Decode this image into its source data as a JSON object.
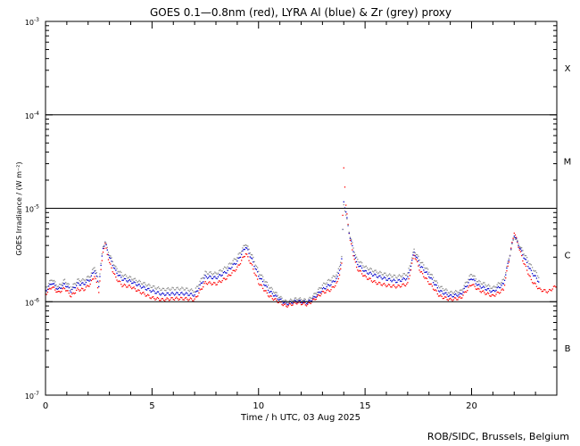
{
  "chart_data": {
    "type": "scatter",
    "title": "GOES 0.1—0.8nm (red), LYRA Al (blue) & Zr (grey) proxy",
    "xlabel": "Time / h UTC, 03 Aug 2025",
    "ylabel": "GOES Irradiance / (W m⁻²)",
    "xlim": [
      0,
      24
    ],
    "ylim": [
      1e-07,
      0.001
    ],
    "yscale": "log",
    "x_ticks": [
      "0",
      "5",
      "10",
      "15",
      "20"
    ],
    "x_tick_values": [
      0,
      5,
      10,
      15,
      20
    ],
    "y_ticks": [
      {
        "value": 0.001,
        "base": "10",
        "exp": "-3"
      },
      {
        "value": 0.0001,
        "base": "10",
        "exp": "-4"
      },
      {
        "value": 1e-05,
        "base": "10",
        "exp": "-5"
      },
      {
        "value": 1e-06,
        "base": "10",
        "exp": "-6"
      },
      {
        "value": 1e-07,
        "base": "10",
        "exp": "-7"
      }
    ],
    "flare_class_lines": [
      0.0001,
      1e-05,
      1e-06
    ],
    "class_labels": [
      {
        "label": "X",
        "value": 0.00032
      },
      {
        "label": "M",
        "value": 3.2e-05
      },
      {
        "label": "C",
        "value": 3.2e-06
      },
      {
        "label": "B",
        "value": 3.2e-07
      }
    ],
    "series": [
      {
        "name": "GOES 0.1—0.8nm",
        "color": "#ff0000",
        "points": [
          [
            0,
            1.2e-06
          ],
          [
            0.3,
            1.45e-06
          ],
          [
            0.6,
            1.25e-06
          ],
          [
            0.9,
            1.4e-06
          ],
          [
            1.2,
            1.15e-06
          ],
          [
            1.5,
            1.35e-06
          ],
          [
            1.8,
            1.35e-06
          ],
          [
            2.1,
            1.55e-06
          ],
          [
            2.3,
            1.9e-06
          ],
          [
            2.5,
            1.3e-06
          ],
          [
            2.7,
            3.5e-06
          ],
          [
            2.8,
            4.1e-06
          ],
          [
            3.0,
            2.6e-06
          ],
          [
            3.3,
            1.8e-06
          ],
          [
            3.6,
            1.5e-06
          ],
          [
            4.0,
            1.45e-06
          ],
          [
            4.5,
            1.25e-06
          ],
          [
            5.0,
            1.1e-06
          ],
          [
            5.5,
            1.05e-06
          ],
          [
            6.0,
            1.08e-06
          ],
          [
            6.5,
            1.08e-06
          ],
          [
            7.0,
            1.05e-06
          ],
          [
            7.5,
            1.6e-06
          ],
          [
            8.0,
            1.55e-06
          ],
          [
            8.5,
            1.8e-06
          ],
          [
            9.0,
            2.3e-06
          ],
          [
            9.4,
            3.3e-06
          ],
          [
            9.7,
            2.4e-06
          ],
          [
            10.0,
            1.6e-06
          ],
          [
            10.5,
            1.15e-06
          ],
          [
            11.0,
            9.8e-07
          ],
          [
            11.3,
            9e-07
          ],
          [
            11.8,
            9.8e-07
          ],
          [
            12.3,
            9.3e-07
          ],
          [
            12.6,
            1.05e-06
          ],
          [
            13.0,
            1.25e-06
          ],
          [
            13.4,
            1.35e-06
          ],
          [
            13.7,
            1.6e-06
          ],
          [
            13.9,
            2.5e-06
          ],
          [
            14.0,
            2.8e-05
          ],
          [
            14.1,
            1.05e-05
          ],
          [
            14.3,
            4.5e-06
          ],
          [
            14.6,
            2.3e-06
          ],
          [
            15.0,
            1.85e-06
          ],
          [
            15.5,
            1.6e-06
          ],
          [
            16.0,
            1.5e-06
          ],
          [
            16.5,
            1.45e-06
          ],
          [
            17.0,
            1.55e-06
          ],
          [
            17.3,
            3.2e-06
          ],
          [
            17.6,
            2.1e-06
          ],
          [
            18.0,
            1.6e-06
          ],
          [
            18.5,
            1.15e-06
          ],
          [
            19.0,
            1.05e-06
          ],
          [
            19.5,
            1.1e-06
          ],
          [
            20.0,
            1.55e-06
          ],
          [
            20.3,
            1.35e-06
          ],
          [
            20.6,
            1.25e-06
          ],
          [
            21.0,
            1.15e-06
          ],
          [
            21.5,
            1.35e-06
          ],
          [
            22.0,
            5.6e-06
          ],
          [
            22.4,
            2.8e-06
          ],
          [
            22.8,
            1.7e-06
          ],
          [
            23.2,
            1.35e-06
          ],
          [
            23.6,
            1.28e-06
          ],
          [
            24,
            1.5e-06
          ]
        ]
      },
      {
        "name": "LYRA Al proxy",
        "color": "#0000cc",
        "points": [
          [
            0,
            1.3e-06
          ],
          [
            0.3,
            1.6e-06
          ],
          [
            0.6,
            1.35e-06
          ],
          [
            0.9,
            1.55e-06
          ],
          [
            1.2,
            1.3e-06
          ],
          [
            1.5,
            1.55e-06
          ],
          [
            1.8,
            1.55e-06
          ],
          [
            2.1,
            1.75e-06
          ],
          [
            2.3,
            2.2e-06
          ],
          [
            2.5,
            1.5e-06
          ],
          [
            2.7,
            3.8e-06
          ],
          [
            2.8,
            4.3e-06
          ],
          [
            3.0,
            3e-06
          ],
          [
            3.3,
            2.1e-06
          ],
          [
            3.6,
            1.75e-06
          ],
          [
            4.0,
            1.65e-06
          ],
          [
            4.5,
            1.45e-06
          ],
          [
            5.0,
            1.3e-06
          ],
          [
            5.5,
            1.2e-06
          ],
          [
            6.0,
            1.22e-06
          ],
          [
            6.5,
            1.22e-06
          ],
          [
            7.0,
            1.18e-06
          ],
          [
            7.5,
            1.85e-06
          ],
          [
            8.0,
            1.8e-06
          ],
          [
            8.5,
            2.1e-06
          ],
          [
            9.0,
            2.7e-06
          ],
          [
            9.4,
            3.9e-06
          ],
          [
            9.7,
            2.8e-06
          ],
          [
            10.0,
            1.9e-06
          ],
          [
            10.5,
            1.3e-06
          ],
          [
            11.0,
            1.05e-06
          ],
          [
            11.3,
            9.5e-07
          ],
          [
            11.8,
            1.02e-06
          ],
          [
            12.3,
            9.8e-07
          ],
          [
            12.6,
            1.1e-06
          ],
          [
            13.0,
            1.35e-06
          ],
          [
            13.4,
            1.55e-06
          ],
          [
            13.7,
            1.8e-06
          ],
          [
            13.9,
            2.8e-06
          ],
          [
            14.0,
            1.2e-05
          ],
          [
            14.1,
            9e-06
          ],
          [
            14.3,
            4.8e-06
          ],
          [
            14.6,
            2.6e-06
          ],
          [
            15.0,
            2.1e-06
          ],
          [
            15.5,
            1.9e-06
          ],
          [
            16.0,
            1.75e-06
          ],
          [
            16.5,
            1.65e-06
          ],
          [
            17.0,
            1.8e-06
          ],
          [
            17.3,
            3.4e-06
          ],
          [
            17.6,
            2.4e-06
          ],
          [
            18.0,
            1.9e-06
          ],
          [
            18.5,
            1.3e-06
          ],
          [
            19.0,
            1.15e-06
          ],
          [
            19.5,
            1.2e-06
          ],
          [
            20.0,
            1.8e-06
          ],
          [
            20.3,
            1.5e-06
          ],
          [
            20.6,
            1.4e-06
          ],
          [
            21.0,
            1.28e-06
          ],
          [
            21.5,
            1.55e-06
          ],
          [
            22.0,
            5.2e-06
          ],
          [
            22.4,
            3.2e-06
          ],
          [
            22.8,
            2.1e-06
          ],
          [
            23.2,
            1.6e-06
          ]
        ]
      },
      {
        "name": "LYRA Zr proxy",
        "color": "#8c8c8c",
        "points": [
          [
            0,
            1.4e-06
          ],
          [
            0.3,
            1.75e-06
          ],
          [
            0.6,
            1.45e-06
          ],
          [
            0.9,
            1.7e-06
          ],
          [
            1.2,
            1.4e-06
          ],
          [
            1.5,
            1.7e-06
          ],
          [
            1.8,
            1.7e-06
          ],
          [
            2.1,
            1.9e-06
          ],
          [
            2.3,
            2.4e-06
          ],
          [
            2.5,
            1.65e-06
          ],
          [
            2.7,
            3.9e-06
          ],
          [
            2.8,
            4.4e-06
          ],
          [
            3.0,
            3.2e-06
          ],
          [
            3.3,
            2.3e-06
          ],
          [
            3.6,
            1.95e-06
          ],
          [
            4.0,
            1.8e-06
          ],
          [
            4.5,
            1.6e-06
          ],
          [
            5.0,
            1.45e-06
          ],
          [
            5.5,
            1.35e-06
          ],
          [
            6.0,
            1.38e-06
          ],
          [
            6.5,
            1.38e-06
          ],
          [
            7.0,
            1.3e-06
          ],
          [
            7.5,
            2.05e-06
          ],
          [
            8.0,
            2e-06
          ],
          [
            8.5,
            2.35e-06
          ],
          [
            9.0,
            3e-06
          ],
          [
            9.4,
            4.2e-06
          ],
          [
            9.7,
            3.1e-06
          ],
          [
            10.0,
            2.1e-06
          ],
          [
            10.5,
            1.45e-06
          ],
          [
            11.0,
            1.12e-06
          ],
          [
            11.3,
            1e-06
          ],
          [
            11.8,
            1.08e-06
          ],
          [
            12.3,
            1.03e-06
          ],
          [
            12.6,
            1.18e-06
          ],
          [
            13.0,
            1.5e-06
          ],
          [
            13.4,
            1.75e-06
          ],
          [
            13.7,
            2e-06
          ],
          [
            13.9,
            3e-06
          ],
          [
            14.0,
            1.1e-05
          ],
          [
            14.1,
            8.5e-06
          ],
          [
            14.3,
            5e-06
          ],
          [
            14.6,
            2.9e-06
          ],
          [
            15.0,
            2.35e-06
          ],
          [
            15.5,
            2.1e-06
          ],
          [
            16.0,
            1.95e-06
          ],
          [
            16.5,
            1.85e-06
          ],
          [
            17.0,
            2e-06
          ],
          [
            17.3,
            3.6e-06
          ],
          [
            17.6,
            2.7e-06
          ],
          [
            18.0,
            2.1e-06
          ],
          [
            18.5,
            1.45e-06
          ],
          [
            19.0,
            1.25e-06
          ],
          [
            19.5,
            1.3e-06
          ],
          [
            20.0,
            2e-06
          ],
          [
            20.3,
            1.65e-06
          ],
          [
            20.6,
            1.55e-06
          ],
          [
            21.0,
            1.4e-06
          ],
          [
            21.5,
            1.7e-06
          ],
          [
            22.0,
            5e-06
          ],
          [
            22.4,
            3.5e-06
          ],
          [
            22.8,
            2.4e-06
          ],
          [
            23.2,
            1.8e-06
          ]
        ]
      }
    ]
  },
  "credit": "ROB/SIDC, Brussels, Belgium"
}
